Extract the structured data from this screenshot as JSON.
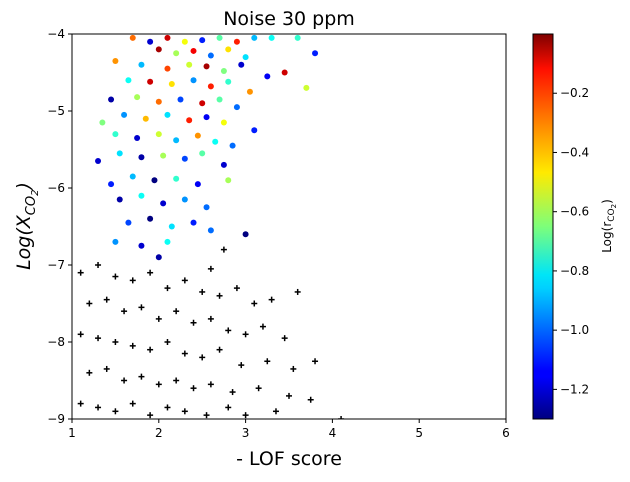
{
  "chart_data": {
    "type": "scatter",
    "title": "Noise 30 ppm",
    "xlabel": "- LOF score",
    "ylabel": {
      "base": "Log(X",
      "sub": "CO",
      "subsub": "2",
      "close": ")"
    },
    "xlim": [
      1,
      6
    ],
    "ylim": [
      -9,
      -4
    ],
    "xticks": [
      1,
      2,
      3,
      4,
      5,
      6
    ],
    "xtick_labels": [
      "1",
      "2",
      "3",
      "4",
      "5",
      "6"
    ],
    "yticks": [
      -9,
      -8,
      -7,
      -6,
      -5,
      -4
    ],
    "ytick_labels": [
      "−9",
      "−8",
      "−7",
      "−6",
      "−5",
      "−4"
    ],
    "grid": false,
    "colormap": "jet",
    "colorbar": {
      "label": {
        "base": "Log(r",
        "sub": "CO",
        "subsub": "2",
        "close": ")"
      },
      "vmin": -1.3,
      "vmax": 0.0,
      "ticks": [
        -1.2,
        -1.0,
        -0.8,
        -0.6,
        -0.4,
        -0.2
      ],
      "tick_labels": [
        "−1.2",
        "−1.0",
        "−0.8",
        "−0.6",
        "−0.4",
        "−0.2"
      ]
    },
    "series": [
      {
        "name": "Colored points (colored by Log(rCO2))",
        "marker": "circle",
        "points": [
          {
            "x": 2.1,
            "y": -4.05,
            "c": -0.1
          },
          {
            "x": 2.3,
            "y": -4.1,
            "c": -0.5
          },
          {
            "x": 2.5,
            "y": -4.08,
            "c": -1.1
          },
          {
            "x": 2.7,
            "y": -4.05,
            "c": -0.7
          },
          {
            "x": 2.9,
            "y": -4.1,
            "c": -0.2
          },
          {
            "x": 3.1,
            "y": -4.05,
            "c": -0.9
          },
          {
            "x": 3.3,
            "y": -4.05,
            "c": -0.8
          },
          {
            "x": 1.7,
            "y": -4.05,
            "c": -0.3
          },
          {
            "x": 1.9,
            "y": -4.1,
            "c": -1.2
          },
          {
            "x": 2.0,
            "y": -4.2,
            "c": -0.05
          },
          {
            "x": 2.2,
            "y": -4.25,
            "c": -0.6
          },
          {
            "x": 2.4,
            "y": -4.22,
            "c": -0.15
          },
          {
            "x": 2.6,
            "y": -4.28,
            "c": -1.0
          },
          {
            "x": 2.8,
            "y": -4.2,
            "c": -0.45
          },
          {
            "x": 3.0,
            "y": -4.3,
            "c": -0.85
          },
          {
            "x": 3.6,
            "y": -4.05,
            "c": -0.75
          },
          {
            "x": 3.8,
            "y": -4.25,
            "c": -1.1
          },
          {
            "x": 1.5,
            "y": -4.35,
            "c": -0.35
          },
          {
            "x": 1.8,
            "y": -4.4,
            "c": -0.9
          },
          {
            "x": 2.1,
            "y": -4.45,
            "c": -0.25
          },
          {
            "x": 2.35,
            "y": -4.4,
            "c": -0.55
          },
          {
            "x": 2.55,
            "y": -4.42,
            "c": -0.05
          },
          {
            "x": 2.75,
            "y": -4.48,
            "c": -0.65
          },
          {
            "x": 2.95,
            "y": -4.4,
            "c": -1.2
          },
          {
            "x": 3.25,
            "y": -4.55,
            "c": -1.15
          },
          {
            "x": 3.45,
            "y": -4.5,
            "c": -0.1
          },
          {
            "x": 3.7,
            "y": -4.7,
            "c": -0.55
          },
          {
            "x": 1.65,
            "y": -4.6,
            "c": -0.8
          },
          {
            "x": 1.9,
            "y": -4.62,
            "c": -0.1
          },
          {
            "x": 2.15,
            "y": -4.65,
            "c": -0.45
          },
          {
            "x": 2.4,
            "y": -4.6,
            "c": -0.95
          },
          {
            "x": 2.6,
            "y": -4.68,
            "c": -0.2
          },
          {
            "x": 2.8,
            "y": -4.62,
            "c": -0.75
          },
          {
            "x": 3.05,
            "y": -4.75,
            "c": -0.35
          },
          {
            "x": 1.45,
            "y": -4.85,
            "c": -1.25
          },
          {
            "x": 1.75,
            "y": -4.82,
            "c": -0.6
          },
          {
            "x": 2.0,
            "y": -4.88,
            "c": -0.3
          },
          {
            "x": 2.25,
            "y": -4.85,
            "c": -1.05
          },
          {
            "x": 2.5,
            "y": -4.9,
            "c": -0.1
          },
          {
            "x": 2.7,
            "y": -4.85,
            "c": -0.7
          },
          {
            "x": 2.9,
            "y": -4.95,
            "c": -1.0
          },
          {
            "x": 1.35,
            "y": -5.15,
            "c": -0.65
          },
          {
            "x": 1.6,
            "y": -5.05,
            "c": -0.95
          },
          {
            "x": 1.85,
            "y": -5.1,
            "c": -0.4
          },
          {
            "x": 2.1,
            "y": -5.05,
            "c": -0.85
          },
          {
            "x": 2.35,
            "y": -5.12,
            "c": -0.2
          },
          {
            "x": 2.55,
            "y": -5.08,
            "c": -1.15
          },
          {
            "x": 2.75,
            "y": -5.15,
            "c": -0.5
          },
          {
            "x": 3.1,
            "y": -5.25,
            "c": -1.1
          },
          {
            "x": 1.5,
            "y": -5.3,
            "c": -0.75
          },
          {
            "x": 1.75,
            "y": -5.35,
            "c": -1.2
          },
          {
            "x": 2.0,
            "y": -5.3,
            "c": -0.55
          },
          {
            "x": 2.2,
            "y": -5.38,
            "c": -0.9
          },
          {
            "x": 2.45,
            "y": -5.32,
            "c": -0.35
          },
          {
            "x": 2.65,
            "y": -5.4,
            "c": -0.8
          },
          {
            "x": 2.85,
            "y": -5.45,
            "c": -1.0
          },
          {
            "x": 1.3,
            "y": -5.65,
            "c": -1.2
          },
          {
            "x": 1.55,
            "y": -5.55,
            "c": -0.85
          },
          {
            "x": 1.8,
            "y": -5.6,
            "c": -1.25
          },
          {
            "x": 2.05,
            "y": -5.58,
            "c": -0.6
          },
          {
            "x": 2.3,
            "y": -5.62,
            "c": -1.05
          },
          {
            "x": 2.5,
            "y": -5.55,
            "c": -0.7
          },
          {
            "x": 2.75,
            "y": -5.7,
            "c": -1.2
          },
          {
            "x": 1.45,
            "y": -5.95,
            "c": -1.1
          },
          {
            "x": 1.7,
            "y": -5.85,
            "c": -0.9
          },
          {
            "x": 1.95,
            "y": -5.9,
            "c": -1.3
          },
          {
            "x": 2.2,
            "y": -5.88,
            "c": -0.75
          },
          {
            "x": 2.45,
            "y": -5.95,
            "c": -1.15
          },
          {
            "x": 2.8,
            "y": -5.9,
            "c": -0.6
          },
          {
            "x": 1.55,
            "y": -6.15,
            "c": -1.25
          },
          {
            "x": 1.8,
            "y": -6.1,
            "c": -0.8
          },
          {
            "x": 2.05,
            "y": -6.2,
            "c": -1.2
          },
          {
            "x": 2.3,
            "y": -6.15,
            "c": -0.95
          },
          {
            "x": 2.55,
            "y": -6.25,
            "c": -1.0
          },
          {
            "x": 1.65,
            "y": -6.45,
            "c": -1.05
          },
          {
            "x": 1.9,
            "y": -6.4,
            "c": -1.3
          },
          {
            "x": 2.15,
            "y": -6.5,
            "c": -0.85
          },
          {
            "x": 2.4,
            "y": -6.45,
            "c": -1.1
          },
          {
            "x": 1.5,
            "y": -6.7,
            "c": -0.95
          },
          {
            "x": 1.8,
            "y": -6.75,
            "c": -1.2
          },
          {
            "x": 2.1,
            "y": -6.7,
            "c": -0.8
          },
          {
            "x": 2.0,
            "y": -6.9,
            "c": -1.25
          },
          {
            "x": 3.0,
            "y": -6.6,
            "c": -1.3
          },
          {
            "x": 2.6,
            "y": -6.55,
            "c": -1.0
          }
        ]
      },
      {
        "name": "Black crosses",
        "marker": "plus",
        "color": "#000000",
        "points": [
          {
            "x": 1.1,
            "y": -7.1
          },
          {
            "x": 1.3,
            "y": -7.0
          },
          {
            "x": 1.5,
            "y": -7.15
          },
          {
            "x": 1.7,
            "y": -7.2
          },
          {
            "x": 1.9,
            "y": -7.1
          },
          {
            "x": 2.1,
            "y": -7.3
          },
          {
            "x": 2.3,
            "y": -7.2
          },
          {
            "x": 2.5,
            "y": -7.35
          },
          {
            "x": 2.7,
            "y": -7.4
          },
          {
            "x": 2.9,
            "y": -7.3
          },
          {
            "x": 3.1,
            "y": -7.5
          },
          {
            "x": 3.3,
            "y": -7.45
          },
          {
            "x": 3.6,
            "y": -7.35
          },
          {
            "x": 1.2,
            "y": -7.5
          },
          {
            "x": 1.4,
            "y": -7.45
          },
          {
            "x": 1.6,
            "y": -7.6
          },
          {
            "x": 1.8,
            "y": -7.55
          },
          {
            "x": 2.0,
            "y": -7.7
          },
          {
            "x": 2.2,
            "y": -7.6
          },
          {
            "x": 2.4,
            "y": -7.75
          },
          {
            "x": 2.6,
            "y": -7.7
          },
          {
            "x": 2.8,
            "y": -7.85
          },
          {
            "x": 3.0,
            "y": -7.9
          },
          {
            "x": 3.2,
            "y": -7.8
          },
          {
            "x": 3.45,
            "y": -7.95
          },
          {
            "x": 1.1,
            "y": -7.9
          },
          {
            "x": 1.3,
            "y": -7.95
          },
          {
            "x": 1.5,
            "y": -8.0
          },
          {
            "x": 1.7,
            "y": -8.05
          },
          {
            "x": 1.9,
            "y": -8.1
          },
          {
            "x": 2.1,
            "y": -8.0
          },
          {
            "x": 2.3,
            "y": -8.15
          },
          {
            "x": 2.5,
            "y": -8.2
          },
          {
            "x": 2.7,
            "y": -8.1
          },
          {
            "x": 2.95,
            "y": -8.3
          },
          {
            "x": 3.25,
            "y": -8.25
          },
          {
            "x": 3.55,
            "y": -8.35
          },
          {
            "x": 3.8,
            "y": -8.25
          },
          {
            "x": 1.2,
            "y": -8.4
          },
          {
            "x": 1.4,
            "y": -8.35
          },
          {
            "x": 1.6,
            "y": -8.5
          },
          {
            "x": 1.8,
            "y": -8.45
          },
          {
            "x": 2.0,
            "y": -8.55
          },
          {
            "x": 2.2,
            "y": -8.5
          },
          {
            "x": 2.4,
            "y": -8.6
          },
          {
            "x": 2.6,
            "y": -8.55
          },
          {
            "x": 2.85,
            "y": -8.65
          },
          {
            "x": 3.15,
            "y": -8.6
          },
          {
            "x": 3.5,
            "y": -8.7
          },
          {
            "x": 3.75,
            "y": -8.75
          },
          {
            "x": 1.1,
            "y": -8.8
          },
          {
            "x": 1.3,
            "y": -8.85
          },
          {
            "x": 1.5,
            "y": -8.9
          },
          {
            "x": 1.7,
            "y": -8.8
          },
          {
            "x": 1.9,
            "y": -8.95
          },
          {
            "x": 2.1,
            "y": -8.85
          },
          {
            "x": 2.3,
            "y": -8.9
          },
          {
            "x": 2.55,
            "y": -8.95
          },
          {
            "x": 2.8,
            "y": -8.85
          },
          {
            "x": 3.0,
            "y": -8.95
          },
          {
            "x": 3.35,
            "y": -8.9
          },
          {
            "x": 4.1,
            "y": -9.0
          },
          {
            "x": 2.75,
            "y": -6.8
          },
          {
            "x": 2.6,
            "y": -7.05
          }
        ]
      }
    ]
  }
}
